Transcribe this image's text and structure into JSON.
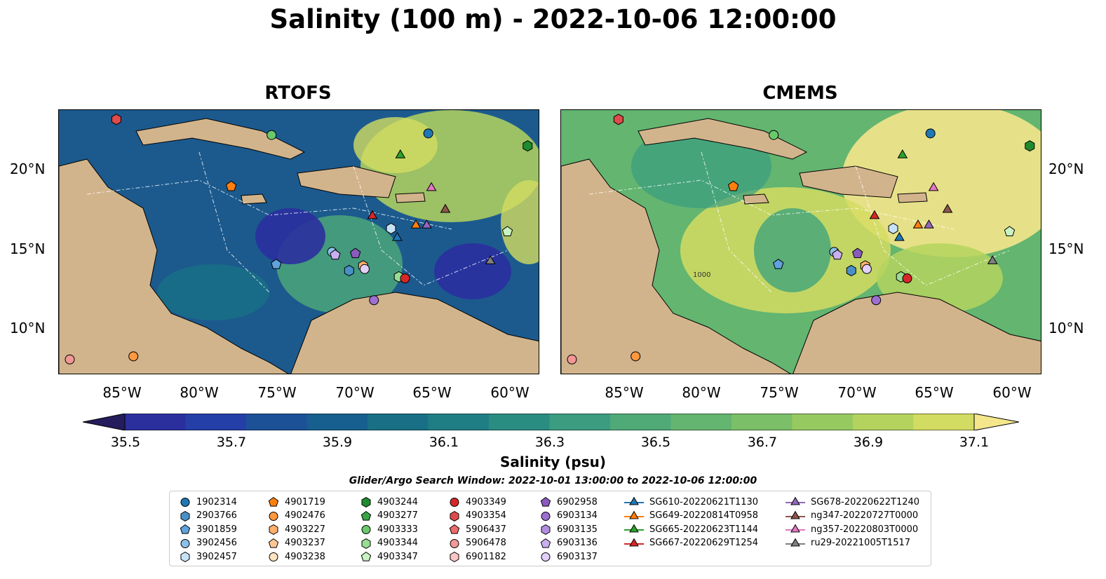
{
  "title": "Salinity (100 m) - 2022-10-06 12:00:00",
  "panels": [
    {
      "title": "RTOFS"
    },
    {
      "title": "CMEMS"
    }
  ],
  "lat_labels": [
    "20°N",
    "15°N",
    "10°N"
  ],
  "lon_labels": [
    "85°W",
    "80°W",
    "75°W",
    "70°W",
    "65°W",
    "60°W"
  ],
  "colorbar": {
    "label": "Salinity (psu)",
    "ticks": [
      "35.5",
      "35.7",
      "35.9",
      "36.1",
      "36.3",
      "36.5",
      "36.7",
      "36.9",
      "37.1"
    ],
    "colors": [
      "#241c5c",
      "#2b2f9e",
      "#253fa8",
      "#1c5198",
      "#175f8e",
      "#197086",
      "#1f7e84",
      "#2a8d82",
      "#3b9c80",
      "#4faa78",
      "#63b570",
      "#7bbf68",
      "#97c961",
      "#b4d35e",
      "#d3dc62",
      "#f4e68b"
    ]
  },
  "search_window": "Glider/Argo Search Window: 2022-10-01 13:00:00 to 2022-10-06 12:00:00",
  "contour_label": "1000",
  "legend": {
    "items": [
      {
        "label": "1902314",
        "marker": "circle",
        "color": "#1f77b4"
      },
      {
        "label": "2903766",
        "marker": "hexagon",
        "color": "#4a90c8"
      },
      {
        "label": "3901859",
        "marker": "pentagon",
        "color": "#5fa2dd"
      },
      {
        "label": "3902456",
        "marker": "circle",
        "color": "#8cc1e8"
      },
      {
        "label": "3902457",
        "marker": "hexagon",
        "color": "#c6e2f7"
      },
      {
        "label": "4901719",
        "marker": "pentagon",
        "color": "#ff7f0e"
      },
      {
        "label": "4902476",
        "marker": "circle",
        "color": "#ff9840"
      },
      {
        "label": "4903227",
        "marker": "hexagon",
        "color": "#ffb06e"
      },
      {
        "label": "4903237",
        "marker": "pentagon",
        "color": "#ffc796"
      },
      {
        "label": "4903238",
        "marker": "circle",
        "color": "#ffe2c2"
      },
      {
        "label": "4903244",
        "marker": "hexagon",
        "color": "#1e8c2e"
      },
      {
        "label": "4903277",
        "marker": "pentagon",
        "color": "#3aa447"
      },
      {
        "label": "4903333",
        "marker": "circle",
        "color": "#69c96b"
      },
      {
        "label": "4903344",
        "marker": "hexagon",
        "color": "#98dd93"
      },
      {
        "label": "4903347",
        "marker": "pentagon",
        "color": "#c9f2c2"
      },
      {
        "label": "4903349",
        "marker": "circle",
        "color": "#d62728"
      },
      {
        "label": "4903354",
        "marker": "hexagon",
        "color": "#e04a4a"
      },
      {
        "label": "5906437",
        "marker": "pentagon",
        "color": "#ea6b6b"
      },
      {
        "label": "5906478",
        "marker": "circle",
        "color": "#f29797"
      },
      {
        "label": "6901182",
        "marker": "hexagon",
        "color": "#f9c6c6"
      },
      {
        "label": "6902958",
        "marker": "pentagon",
        "color": "#8a5bbd"
      },
      {
        "label": "6903134",
        "marker": "circle",
        "color": "#9c6fd0"
      },
      {
        "label": "6903135",
        "marker": "hexagon",
        "color": "#b28ee0"
      },
      {
        "label": "6903136",
        "marker": "pentagon",
        "color": "#caaff0"
      },
      {
        "label": "6903137",
        "marker": "circle",
        "color": "#e2d0fa"
      },
      {
        "label": "SG610-20220621T1130",
        "marker": "triangle-line",
        "color": "#1f77b4"
      },
      {
        "label": "SG649-20220814T0958",
        "marker": "triangle-line",
        "color": "#ff7f0e"
      },
      {
        "label": "SG665-20220623T1144",
        "marker": "triangle-line",
        "color": "#2ca02c"
      },
      {
        "label": "SG667-20220629T1254",
        "marker": "triangle-line",
        "color": "#d62728"
      },
      {
        "label": "SG678-20220622T1240",
        "marker": "triangle-line",
        "color": "#9467bd"
      },
      {
        "label": "ng347-20220727T0000",
        "marker": "triangle-line",
        "color": "#8c564b"
      },
      {
        "label": "ng357-20220803T0000",
        "marker": "triangle-line",
        "color": "#e377c2"
      },
      {
        "label": "ru29-20221005T1517",
        "marker": "triangle-line",
        "color": "#7f7f7f"
      }
    ]
  },
  "markers": [
    {
      "id": "1902314",
      "marker": "circle",
      "color": "#1f77b4",
      "lon": -65.2,
      "lat": 22.5
    },
    {
      "id": "2903766",
      "marker": "hexagon",
      "color": "#4a90c8",
      "lon": -70.3,
      "lat": 13.7
    },
    {
      "id": "3901859",
      "marker": "pentagon",
      "color": "#5fa2dd",
      "lon": -75.0,
      "lat": 14.1
    },
    {
      "id": "3902456",
      "marker": "circle",
      "color": "#8cc1e8",
      "lon": -71.4,
      "lat": 14.9
    },
    {
      "id": "3902457",
      "marker": "hexagon",
      "color": "#c6e2f7",
      "lon": -67.6,
      "lat": 16.4
    },
    {
      "id": "4901719",
      "marker": "pentagon",
      "color": "#ff7f0e",
      "lon": -77.9,
      "lat": 19.1
    },
    {
      "id": "4902476",
      "marker": "circle",
      "color": "#ff9840",
      "lon": -84.2,
      "lat": 8.2
    },
    {
      "id": "4903227",
      "marker": "hexagon",
      "color": "#ffb06e",
      "lon": -69.4,
      "lat": 14.0
    },
    {
      "id": "4903244",
      "marker": "hexagon",
      "color": "#1e8c2e",
      "lon": -58.8,
      "lat": 21.7
    },
    {
      "id": "4903333",
      "marker": "circle",
      "color": "#69c96b",
      "lon": -75.3,
      "lat": 22.4
    },
    {
      "id": "4903344",
      "marker": "hexagon",
      "color": "#98dd93",
      "lon": -67.1,
      "lat": 13.3
    },
    {
      "id": "4903347",
      "marker": "pentagon",
      "color": "#c9f2c2",
      "lon": -60.1,
      "lat": 16.2
    },
    {
      "id": "4903349",
      "marker": "circle",
      "color": "#d62728",
      "lon": -66.7,
      "lat": 13.2
    },
    {
      "id": "4903354",
      "marker": "hexagon",
      "color": "#e04a4a",
      "lon": -85.3,
      "lat": 23.4
    },
    {
      "id": "5906478",
      "marker": "circle",
      "color": "#f29797",
      "lon": -88.3,
      "lat": 8.0
    },
    {
      "id": "6902958",
      "marker": "pentagon",
      "color": "#8a5bbd",
      "lon": -69.9,
      "lat": 14.8
    },
    {
      "id": "6903134",
      "marker": "circle",
      "color": "#9c6fd0",
      "lon": -68.7,
      "lat": 11.8
    },
    {
      "id": "6903136",
      "marker": "pentagon",
      "color": "#caaff0",
      "lon": -71.2,
      "lat": 14.7
    },
    {
      "id": "6903137",
      "marker": "circle",
      "color": "#e2d0fa",
      "lon": -69.3,
      "lat": 13.8
    },
    {
      "id": "SG610-20220621T1130",
      "marker": "triangle",
      "color": "#1f77b4",
      "lon": -67.2,
      "lat": 15.8
    },
    {
      "id": "SG649-20220814T0958",
      "marker": "triangle",
      "color": "#ff7f0e",
      "lon": -66.0,
      "lat": 16.6
    },
    {
      "id": "SG665-20220623T1144",
      "marker": "triangle",
      "color": "#2ca02c",
      "lon": -67.0,
      "lat": 21.1
    },
    {
      "id": "SG667-20220629T1254",
      "marker": "triangle",
      "color": "#d62728",
      "lon": -68.8,
      "lat": 17.2
    },
    {
      "id": "SG678-20220622T1240",
      "marker": "triangle",
      "color": "#9467bd",
      "lon": -65.3,
      "lat": 16.6
    },
    {
      "id": "ng347-20220727T0000",
      "marker": "triangle",
      "color": "#8c564b",
      "lon": -64.1,
      "lat": 17.6
    },
    {
      "id": "ng357-20220803T0000",
      "marker": "triangle",
      "color": "#e377c2",
      "lon": -65.0,
      "lat": 19.0
    },
    {
      "id": "ru29-20221005T1517",
      "marker": "triangle",
      "color": "#7f7f7f",
      "lon": -61.2,
      "lat": 14.3
    }
  ],
  "map_extent": {
    "lon_min": -89,
    "lon_max": -58,
    "lat_min": 7,
    "lat_max": 24
  }
}
